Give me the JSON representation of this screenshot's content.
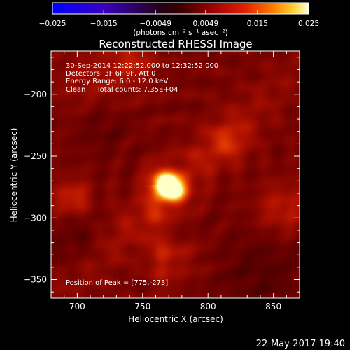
{
  "chart_data": {
    "type": "heatmap",
    "title": "Reconstructed RHESSI Image",
    "xlabel": "Heliocentric X (arcsec)",
    "ylabel": "Heliocentric Y (arcsec)",
    "xlim": [
      680,
      870
    ],
    "ylim": [
      -365,
      -165
    ],
    "x_ticks": [
      700,
      750,
      800,
      850
    ],
    "y_ticks": [
      -200,
      -250,
      -300,
      -350
    ],
    "colorbar": {
      "ticks": [
        -0.025,
        -0.015,
        -0.0049,
        0.0049,
        0.015,
        0.025
      ],
      "tick_labels": [
        "−0.025",
        "−0.015",
        "−0.0049",
        "0.0049",
        "0.015",
        "0.025"
      ],
      "range": [
        -0.025,
        0.025
      ],
      "unit_label": "(photons cm⁻² s⁻¹ asec⁻²)"
    },
    "annotations": [
      "30-Sep-2014 12:22:52.000 to 12:32:52.000",
      "Detectors: 3F 6F 9F, Att 0",
      "Energy Range: 6.0 - 12.0 keV",
      "Clean     Total counts: 7.35E+04"
    ],
    "peak_label": "Position of Peak = [775,-273]",
    "peak": {
      "x": 775,
      "y": -273
    },
    "colormap": "red-temperature"
  },
  "footer": {
    "date": "22-May-2017 19:40"
  }
}
